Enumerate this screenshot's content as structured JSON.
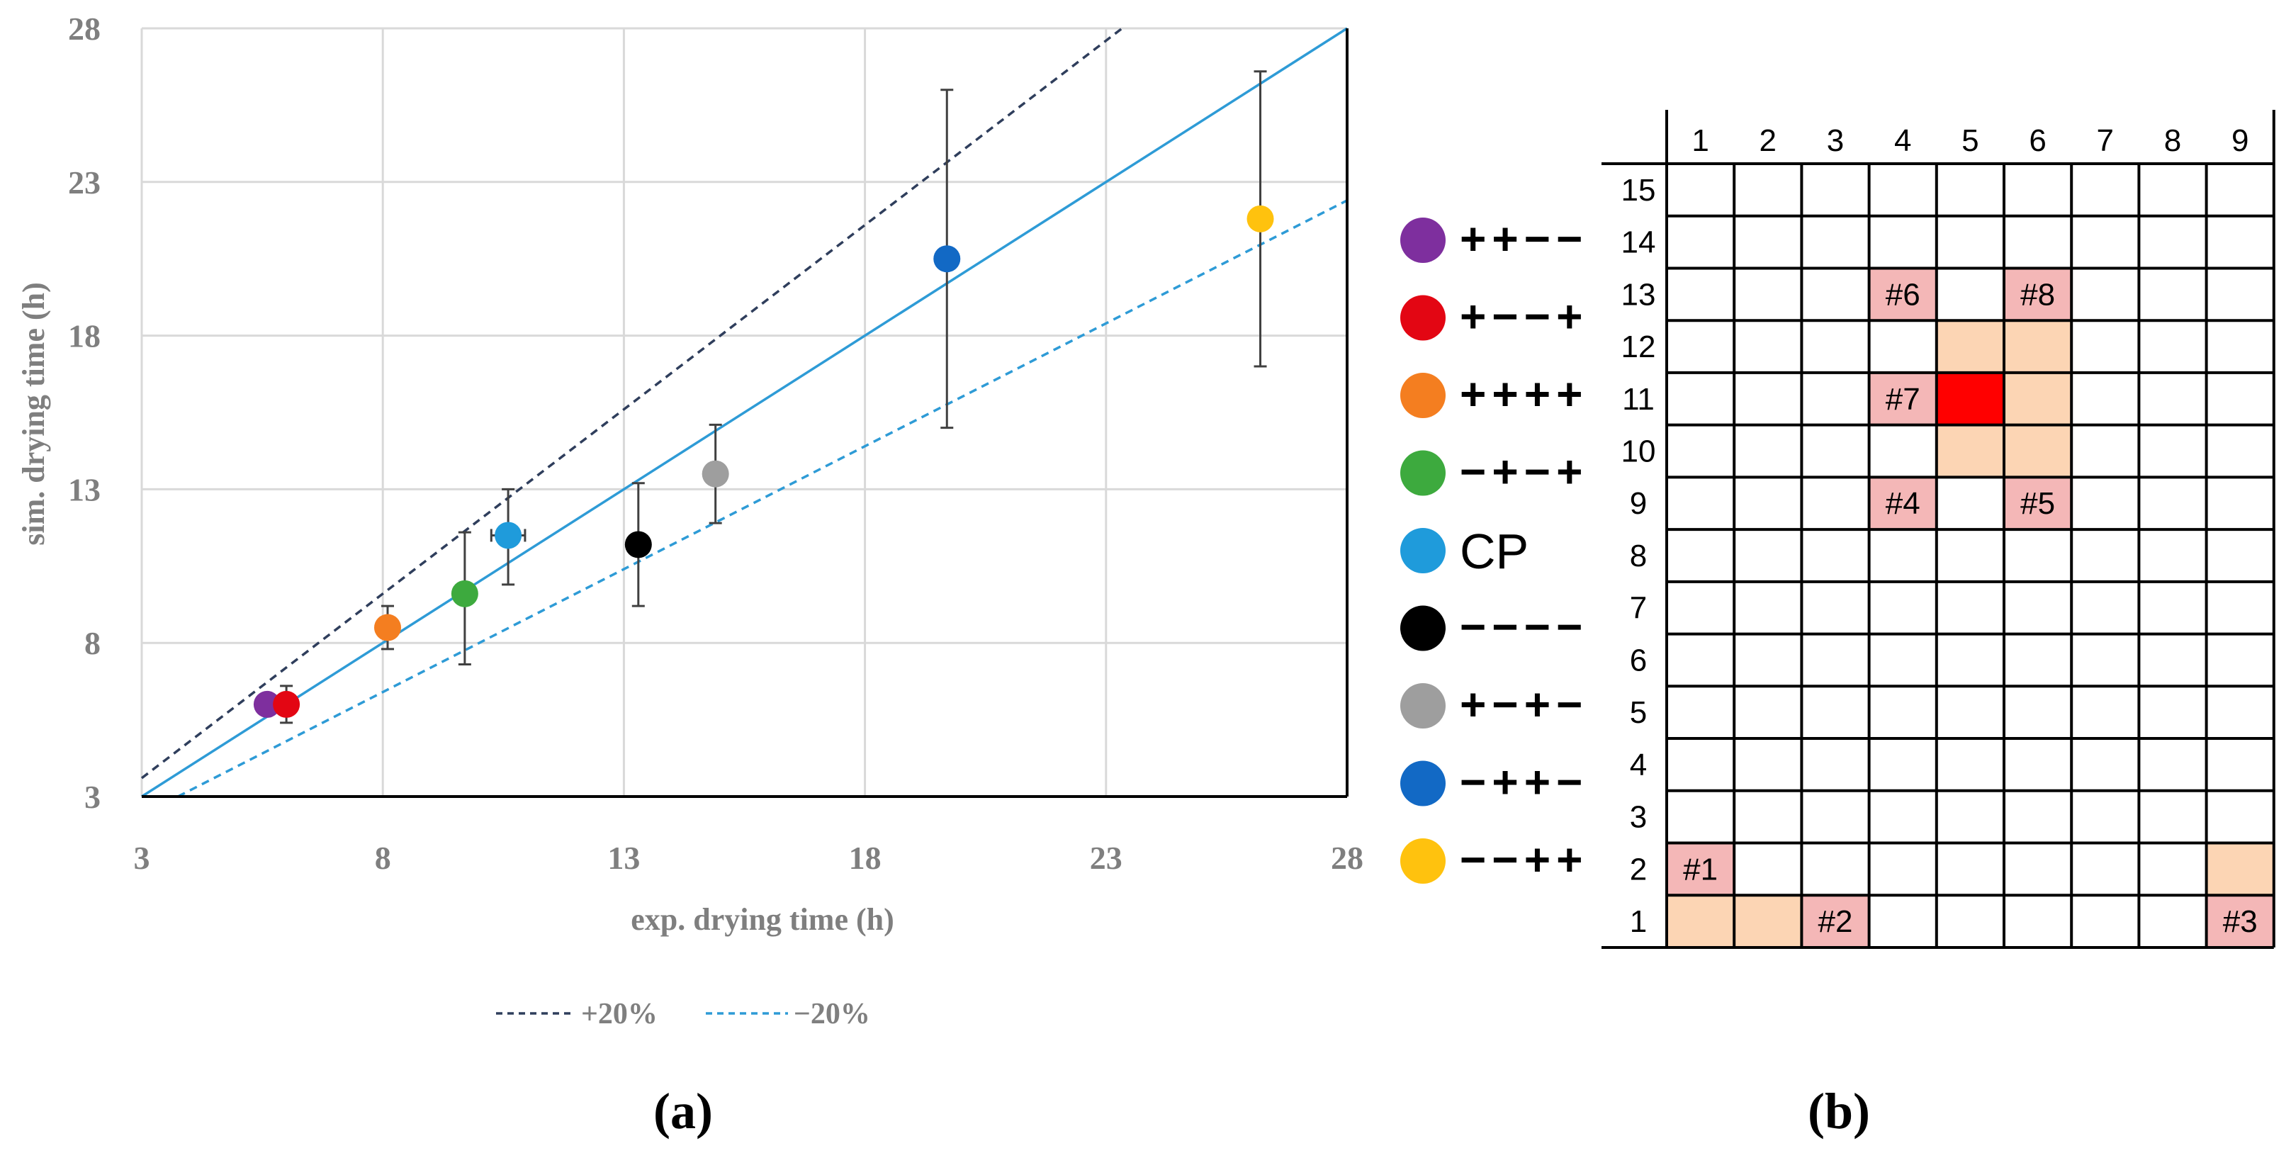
{
  "chart_data": {
    "type": "scatter",
    "xlabel": "exp. drying time (h)",
    "ylabel": "sim. drying time (h)",
    "xlim": [
      3,
      28
    ],
    "ylim": [
      3,
      28
    ],
    "xticks": [
      3,
      8,
      13,
      18,
      23,
      28
    ],
    "yticks": [
      3,
      8,
      13,
      18,
      23,
      28
    ],
    "grid": true,
    "legend_placement": "right",
    "series": [
      {
        "name": "++−−",
        "color": "#7E2F9E",
        "x": 5.6,
        "y": 6.0,
        "yerr": [
          0,
          0
        ],
        "xerr": 0
      },
      {
        "name": "+−−+",
        "color": "#E30613",
        "x": 6.0,
        "y": 6.0,
        "yerr": [
          0.6,
          0.6
        ],
        "xerr": 0
      },
      {
        "name": "++++",
        "color": "#F47E20",
        "x": 8.1,
        "y": 8.5,
        "yerr": [
          0.7,
          0.7
        ],
        "xerr": 0
      },
      {
        "name": "−+−+",
        "color": "#3DAA3E",
        "x": 9.7,
        "y": 9.6,
        "yerr": [
          2.3,
          2.0
        ],
        "xerr": 0
      },
      {
        "name": "CP",
        "color": "#1F9BDB",
        "x": 10.6,
        "y": 11.5,
        "yerr": [
          1.6,
          1.5
        ],
        "xerr": 0.35
      },
      {
        "name": "−−−−",
        "color": "#000000",
        "x": 13.3,
        "y": 11.2,
        "yerr": [
          2.0,
          2.0
        ],
        "xerr": 0
      },
      {
        "name": "+−+−",
        "color": "#9E9E9E",
        "x": 14.9,
        "y": 13.5,
        "yerr": [
          1.6,
          1.6
        ],
        "xerr": 0
      },
      {
        "name": "−++−",
        "color": "#1269C5",
        "x": 19.7,
        "y": 20.5,
        "yerr": [
          5.5,
          5.5
        ],
        "xerr": 0
      },
      {
        "name": "−−++",
        "color": "#FFC20E",
        "x": 26.2,
        "y": 21.8,
        "yerr": [
          4.8,
          4.8
        ],
        "xerr": 0
      }
    ],
    "reference_lines": [
      {
        "name": "y = x",
        "slope": 1.0,
        "style": "solid",
        "color": "#2E9BD6"
      },
      {
        "name": "+20%",
        "slope": 1.2,
        "style": "dashed",
        "color": "#2F3E5C"
      },
      {
        "name": "−20%",
        "slope": 0.8,
        "style": "dashed",
        "color": "#2E9BD6"
      }
    ],
    "line_legend": [
      {
        "label": "+20%",
        "color": "#2F3E5C"
      },
      {
        "label": "−20%",
        "color": "#2E9BD6"
      }
    ]
  },
  "panel_labels": {
    "a": "(a)",
    "b": "(b)"
  },
  "grid_b": {
    "columns": [
      "1",
      "2",
      "3",
      "4",
      "5",
      "6",
      "7",
      "8",
      "9"
    ],
    "rows": [
      "15",
      "14",
      "13",
      "12",
      "11",
      "10",
      "9",
      "8",
      "7",
      "6",
      "5",
      "4",
      "3",
      "2",
      "1"
    ],
    "colors": {
      "pink": "#F4B7B7",
      "peach": "#FCD5B4",
      "red": "#FF0000"
    },
    "cells": [
      {
        "row": "13",
        "col": "4",
        "fill": "pink",
        "label": "#6"
      },
      {
        "row": "13",
        "col": "6",
        "fill": "pink",
        "label": "#8"
      },
      {
        "row": "12",
        "col": "5",
        "fill": "peach",
        "label": ""
      },
      {
        "row": "12",
        "col": "6",
        "fill": "peach",
        "label": ""
      },
      {
        "row": "11",
        "col": "4",
        "fill": "pink",
        "label": "#7"
      },
      {
        "row": "11",
        "col": "5",
        "fill": "red",
        "label": ""
      },
      {
        "row": "11",
        "col": "6",
        "fill": "peach",
        "label": ""
      },
      {
        "row": "10",
        "col": "5",
        "fill": "peach",
        "label": ""
      },
      {
        "row": "10",
        "col": "6",
        "fill": "peach",
        "label": ""
      },
      {
        "row": "9",
        "col": "4",
        "fill": "pink",
        "label": "#4"
      },
      {
        "row": "9",
        "col": "6",
        "fill": "pink",
        "label": "#5"
      },
      {
        "row": "2",
        "col": "1",
        "fill": "pink",
        "label": "#1"
      },
      {
        "row": "2",
        "col": "9",
        "fill": "peach",
        "label": ""
      },
      {
        "row": "1",
        "col": "1",
        "fill": "peach",
        "label": ""
      },
      {
        "row": "1",
        "col": "2",
        "fill": "peach",
        "label": ""
      },
      {
        "row": "1",
        "col": "3",
        "fill": "pink",
        "label": "#2"
      },
      {
        "row": "1",
        "col": "9",
        "fill": "pink",
        "label": "#3"
      }
    ]
  }
}
